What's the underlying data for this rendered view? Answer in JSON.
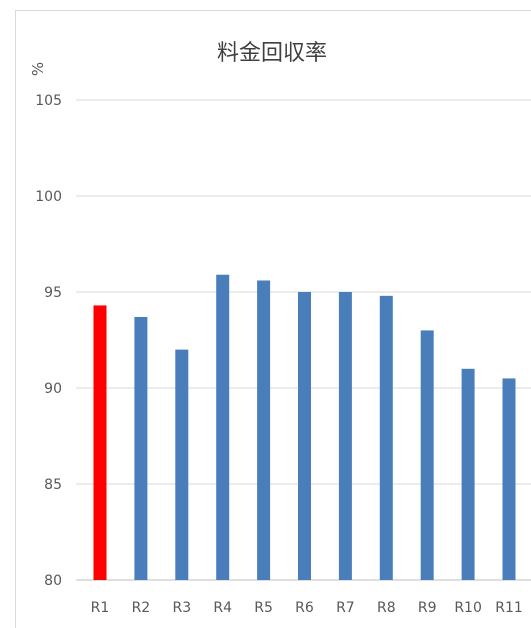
{
  "chart_data": {
    "type": "bar",
    "title": "料金回収率",
    "ylabel": "%",
    "xlabel": "",
    "categories": [
      "R1",
      "R2",
      "R3",
      "R4",
      "R5",
      "R6",
      "R7",
      "R8",
      "R9",
      "R10",
      "R11"
    ],
    "values": [
      94.3,
      93.7,
      92.0,
      95.9,
      95.6,
      95.0,
      95.0,
      94.8,
      93.0,
      91.0,
      90.5
    ],
    "ylim": [
      80,
      105
    ],
    "yticks": [
      80,
      85,
      90,
      95,
      100,
      105
    ],
    "grid": true,
    "legend": "none",
    "colors": {
      "highlight": "#ff0000",
      "bar": "#4a7ebb",
      "grid": "#d9d9d9",
      "axis": "#bfbfbf"
    },
    "highlight_index": 0
  }
}
